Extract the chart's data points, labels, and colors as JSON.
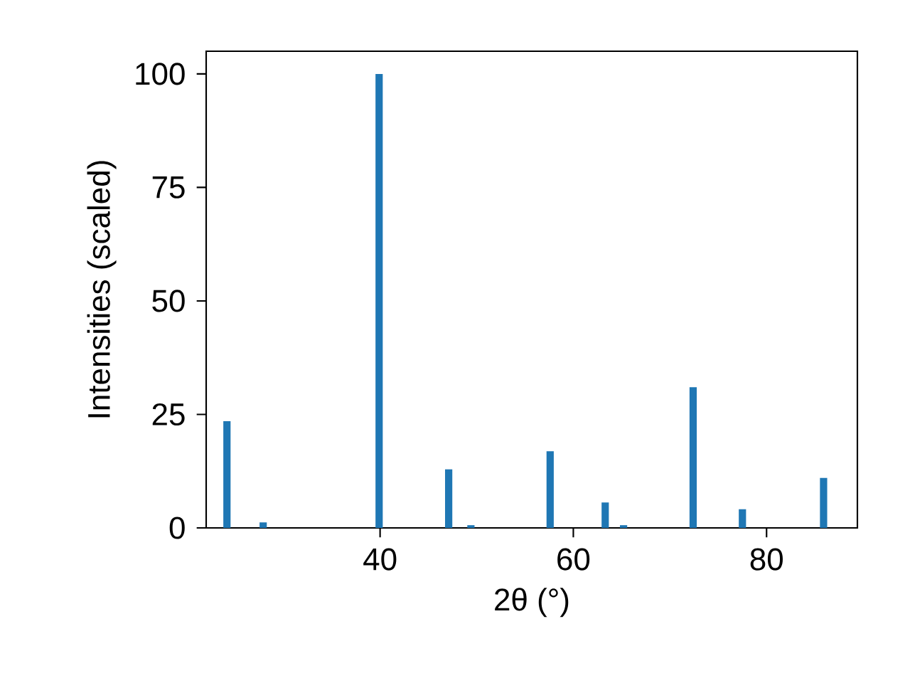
{
  "chart_data": {
    "type": "bar",
    "xlabel": "2θ (°)",
    "ylabel": "Intensities (scaled)",
    "x": [
      24.15,
      27.9,
      39.9,
      47.1,
      49.4,
      57.6,
      63.3,
      65.2,
      72.4,
      77.5,
      85.9
    ],
    "values": [
      23.5,
      1.2,
      100,
      12.9,
      0.6,
      16.9,
      5.6,
      0.6,
      31.0,
      4.1,
      11.0
    ],
    "color": "#1f77b4",
    "xlim": [
      22.0,
      89.4
    ],
    "ylim": [
      0,
      105
    ],
    "xticks": [
      40,
      60,
      80
    ],
    "yticks": [
      0,
      25,
      50,
      75,
      100
    ]
  }
}
